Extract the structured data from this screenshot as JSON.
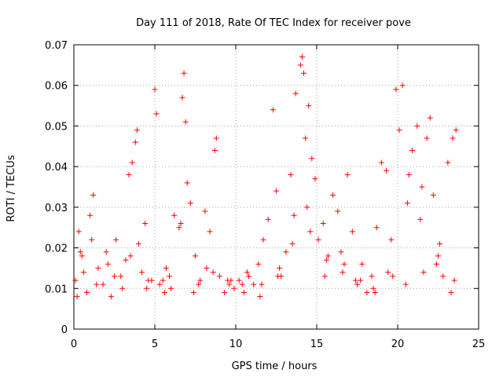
{
  "chart_data": {
    "type": "scatter",
    "title": "Day 111 of 2018, Rate Of TEC Index for receiver pove",
    "xlabel": "GPS time / hours",
    "ylabel": "ROTI / TECUs",
    "xlim": [
      0,
      25
    ],
    "ylim": [
      0,
      0.07
    ],
    "x_ticks": [
      0,
      5,
      10,
      15,
      20,
      25
    ],
    "x_tick_labels": [
      "0",
      "5",
      "10",
      "15",
      "20",
      "25"
    ],
    "y_ticks": [
      0,
      0.01,
      0.02,
      0.03,
      0.04,
      0.05,
      0.06,
      0.07
    ],
    "y_tick_labels": [
      "0",
      "0.01",
      "0.02",
      "0.03",
      "0.04",
      "0.05",
      "0.06",
      "0.07"
    ],
    "grid": true,
    "marker": "plus",
    "color": "#ff0000",
    "series": [
      {
        "x": [
          0.1,
          0.3,
          0.5,
          0.8,
          1.0,
          1.2,
          1.5,
          1.8,
          2.0,
          2.3,
          2.6,
          2.9,
          3.2,
          3.4,
          3.6,
          3.8,
          3.9,
          4.0,
          4.2,
          4.5,
          4.8,
          5.0,
          5.1,
          5.3,
          5.6,
          5.9,
          6.2,
          6.5,
          6.7,
          6.8,
          6.9,
          7.0,
          7.2,
          7.5,
          7.8,
          8.1,
          8.4,
          8.7,
          8.8,
          9.0,
          9.3,
          9.6,
          9.9,
          10.2,
          10.5,
          10.8,
          11.1,
          11.4,
          11.7,
          12.0,
          12.3,
          12.5,
          12.8,
          13.1,
          13.4,
          13.7,
          14.0,
          14.1,
          14.2,
          14.3,
          14.5,
          14.7,
          14.9,
          15.1,
          15.4,
          15.7,
          16.0,
          16.3,
          16.6,
          16.9,
          17.2,
          17.5,
          17.8,
          18.1,
          18.4,
          18.7,
          19.0,
          19.3,
          19.6,
          19.9,
          20.1,
          20.3,
          20.6,
          20.9,
          21.2,
          21.5,
          21.8,
          22.0,
          22.2,
          22.5,
          22.8,
          23.1,
          23.4,
          23.6,
          0.2,
          0.6,
          1.1,
          2.1,
          3.0,
          4.4,
          5.5,
          6.0,
          7.4,
          8.2,
          9.5,
          10.4,
          11.5,
          12.6,
          13.5,
          14.4,
          15.5,
          16.5,
          17.4,
          18.5,
          19.4,
          20.5,
          21.4,
          22.4,
          23.3,
          0.4,
          1.4,
          2.5,
          3.5,
          4.6,
          5.7,
          6.6,
          7.7,
          8.6,
          9.7,
          10.7,
          11.6,
          12.7,
          13.6,
          14.6,
          15.6,
          16.7,
          17.7,
          18.6,
          19.7,
          20.7,
          21.6,
          22.6,
          23.5
        ],
        "y": [
          0.012,
          0.024,
          0.018,
          0.009,
          0.028,
          0.033,
          0.015,
          0.011,
          0.019,
          0.008,
          0.022,
          0.013,
          0.017,
          0.038,
          0.041,
          0.046,
          0.049,
          0.021,
          0.014,
          0.01,
          0.012,
          0.059,
          0.053,
          0.011,
          0.009,
          0.013,
          0.028,
          0.025,
          0.057,
          0.063,
          0.051,
          0.036,
          0.031,
          0.018,
          0.012,
          0.029,
          0.024,
          0.044,
          0.047,
          0.013,
          0.009,
          0.011,
          0.01,
          0.012,
          0.009,
          0.013,
          0.011,
          0.016,
          0.022,
          0.027,
          0.054,
          0.034,
          0.013,
          0.019,
          0.038,
          0.058,
          0.065,
          0.067,
          0.063,
          0.047,
          0.055,
          0.042,
          0.037,
          0.022,
          0.026,
          0.018,
          0.033,
          0.029,
          0.014,
          0.038,
          0.024,
          0.011,
          0.016,
          0.009,
          0.013,
          0.025,
          0.041,
          0.039,
          0.022,
          0.059,
          0.049,
          0.06,
          0.031,
          0.044,
          0.05,
          0.035,
          0.047,
          0.052,
          0.033,
          0.018,
          0.013,
          0.041,
          0.047,
          0.049,
          0.008,
          0.014,
          0.022,
          0.016,
          0.01,
          0.026,
          0.012,
          0.01,
          0.009,
          0.015,
          0.012,
          0.011,
          0.008,
          0.013,
          0.021,
          0.03,
          0.013,
          0.019,
          0.012,
          0.01,
          0.014,
          0.011,
          0.027,
          0.016,
          0.009,
          0.019,
          0.011,
          0.013,
          0.018,
          0.012,
          0.015,
          0.026,
          0.011,
          0.014,
          0.012,
          0.014,
          0.011,
          0.015,
          0.028,
          0.024,
          0.017,
          0.016,
          0.012,
          0.009,
          0.013,
          0.038,
          0.014,
          0.021,
          0.012
        ]
      }
    ]
  }
}
